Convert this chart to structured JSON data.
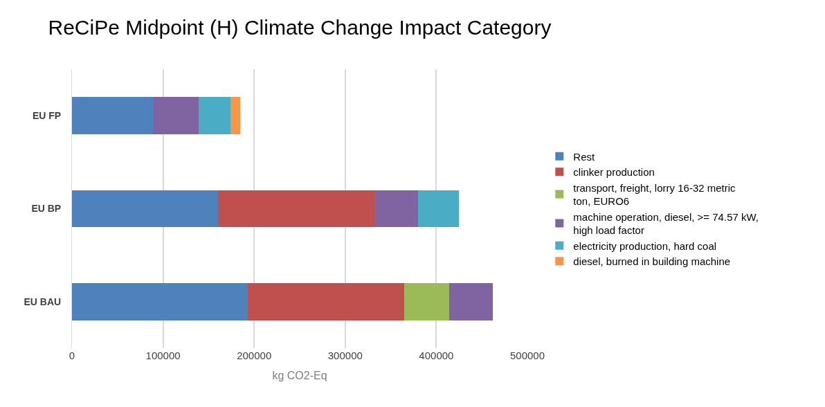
{
  "chart_data": {
    "type": "bar",
    "orientation": "horizontal",
    "stacked": true,
    "title": "ReCiPe Midpoint (H) Climate Change Impact Category",
    "xlabel": "kg CO2-Eq",
    "categories": [
      "EU FP",
      "EU BP",
      "EU BAU"
    ],
    "series": [
      {
        "name": "Rest",
        "color": "#4f81bd",
        "values": [
          89000,
          160000,
          193000
        ]
      },
      {
        "name": "clinker production",
        "color": "#c0504d",
        "values": [
          null,
          172000,
          172000
        ]
      },
      {
        "name": "transport, freight, lorry 16-32 metric ton, EURO6",
        "color": "#9bbb59",
        "values": [
          null,
          null,
          49000
        ]
      },
      {
        "name": "machine operation, diesel, >= 74.57 kW, high load factor",
        "color": "#8064a2",
        "values": [
          50000,
          48000,
          48000
        ]
      },
      {
        "name": "electricity production, hard coal",
        "color": "#4bacc6",
        "values": [
          35000,
          45000,
          null
        ]
      },
      {
        "name": "diesel, burned in building machine",
        "color": "#f79646",
        "values": [
          11000,
          null,
          null
        ]
      }
    ],
    "xlim": [
      0,
      500000
    ],
    "xticks": [
      0,
      100000,
      200000,
      300000,
      400000,
      500000
    ],
    "grid": "x",
    "legend": "right"
  }
}
